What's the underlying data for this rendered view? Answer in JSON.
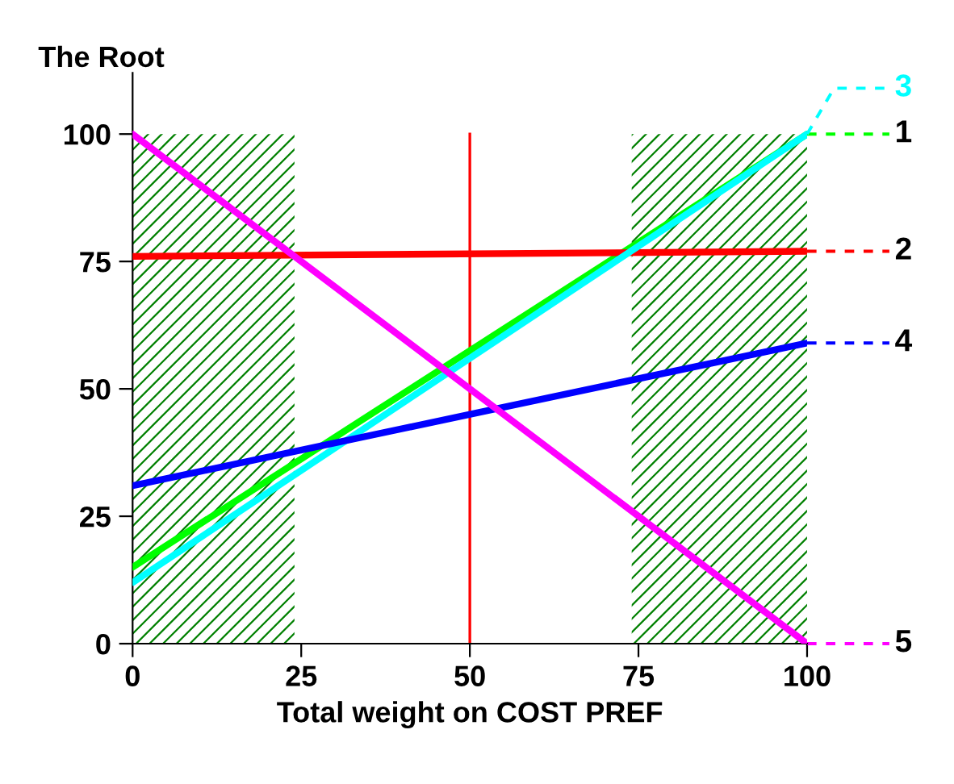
{
  "chart_data": {
    "type": "line",
    "title": "The Root",
    "xlabel": "Total weight on COST PREF",
    "x": [
      0,
      100
    ],
    "series": [
      {
        "name": "1",
        "color": "#00ff00",
        "values": [
          15,
          100
        ]
      },
      {
        "name": "2",
        "color": "#ff0000",
        "values": [
          76,
          77
        ]
      },
      {
        "name": "3",
        "color": "#00ffff",
        "values": [
          12,
          100
        ]
      },
      {
        "name": "4",
        "color": "#0000ff",
        "values": [
          31,
          59
        ]
      },
      {
        "name": "5",
        "color": "#ff00ff",
        "values": [
          100,
          0
        ]
      }
    ],
    "xlim": [
      0,
      100
    ],
    "ylim": [
      0,
      112
    ],
    "xticks": [
      0,
      25,
      50,
      75,
      100
    ],
    "yticks": [
      0,
      25,
      50,
      75,
      100
    ],
    "ref_lines": [
      {
        "axis": "x",
        "value": 50,
        "color": "#ff0000"
      }
    ],
    "bands": [
      {
        "axis": "x",
        "from": 0,
        "to": 24,
        "color": "#008000"
      },
      {
        "axis": "x",
        "from": 74,
        "to": 100,
        "color": "#008000"
      }
    ],
    "grid": false,
    "legend": "right",
    "marker": "none",
    "line_style": "solid"
  }
}
